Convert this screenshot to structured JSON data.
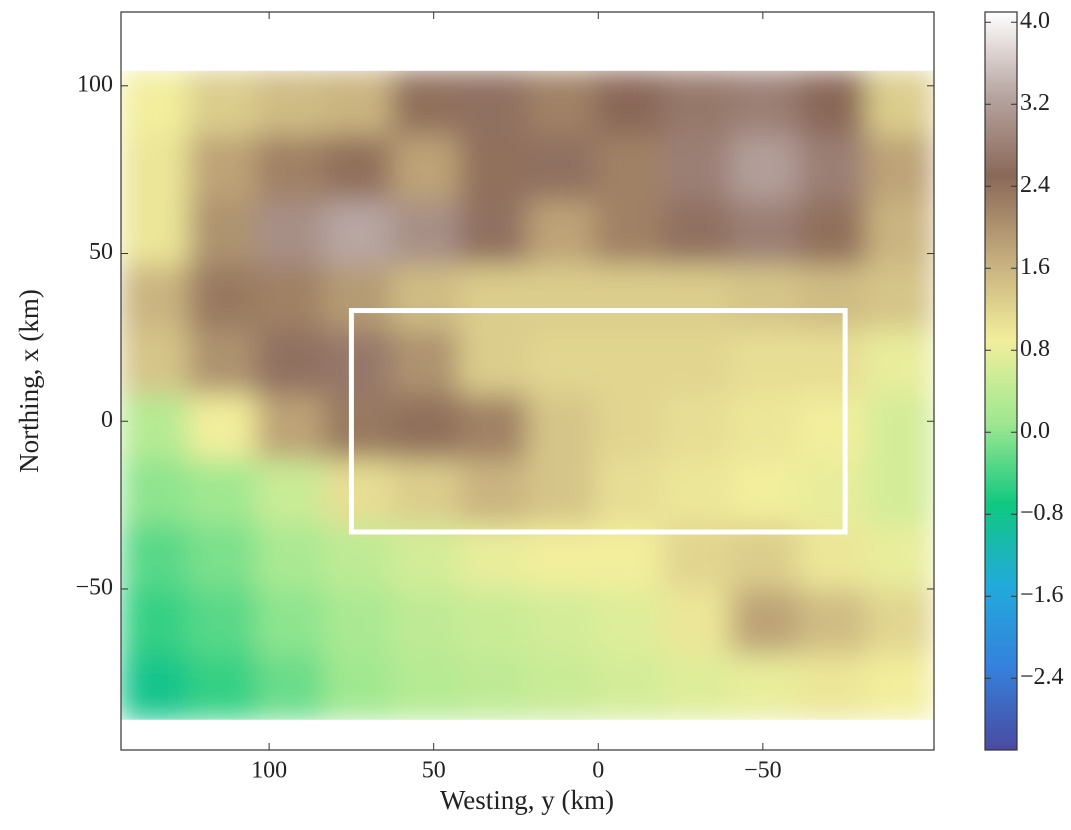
{
  "chart_data": {
    "type": "heatmap",
    "xlabel": "Westing, y (km)",
    "ylabel": "Northing, x (km)",
    "xlim": [
      145,
      -102
    ],
    "ylim": [
      -98,
      122
    ],
    "xticks": [
      100,
      50,
      0,
      {
        "value": -50,
        "label": "−50"
      }
    ],
    "yticks": [
      100,
      50,
      0,
      {
        "value": -50,
        "label": "−50"
      }
    ],
    "extent": [
      145,
      -102,
      -89,
      104.5
    ],
    "z": [
      [
        0.9,
        1.3,
        1.5,
        1.6,
        2.4,
        2.6,
        2.2,
        2.5,
        2.7,
        2.8,
        2.5,
        1.3
      ],
      [
        1.0,
        1.8,
        2.2,
        2.4,
        1.8,
        2.4,
        2.6,
        2.2,
        2.8,
        3.2,
        2.8,
        1.8
      ],
      [
        1.0,
        2.0,
        3.0,
        3.3,
        3.0,
        2.6,
        1.8,
        2.2,
        2.6,
        2.8,
        2.4,
        1.6
      ],
      [
        1.6,
        2.3,
        2.2,
        1.9,
        1.5,
        1.3,
        1.3,
        1.3,
        1.3,
        1.4,
        1.5,
        1.4
      ],
      [
        1.4,
        2.0,
        2.6,
        2.7,
        2.0,
        1.3,
        1.2,
        1.2,
        1.2,
        1.1,
        1.1,
        0.8
      ],
      [
        0.3,
        0.9,
        1.8,
        2.3,
        2.4,
        2.2,
        1.4,
        1.2,
        1.1,
        1.0,
        0.9,
        0.6
      ],
      [
        0.0,
        0.1,
        0.5,
        1.1,
        1.3,
        1.6,
        1.4,
        1.1,
        1.0,
        0.9,
        0.8,
        0.6
      ],
      [
        -0.3,
        -0.1,
        0.2,
        0.4,
        0.6,
        0.8,
        0.9,
        0.9,
        1.2,
        1.3,
        1.0,
        0.8
      ],
      [
        -0.5,
        -0.3,
        0.0,
        0.2,
        0.4,
        0.5,
        0.6,
        0.7,
        1.0,
        1.8,
        1.5,
        1.2
      ],
      [
        -0.8,
        -0.5,
        -0.2,
        0.1,
        0.3,
        0.4,
        0.5,
        0.6,
        0.7,
        0.8,
        1.0,
        0.9
      ]
    ],
    "clim": [
      -3.1,
      4.1
    ],
    "colormap": [
      "#4b4aa0",
      "#3580dc",
      "#22aadc",
      "#10c880",
      "#a0e890",
      "#f2ee9c",
      "#c4ac7c",
      "#8a6858",
      "#b8a6a2",
      "#ffffff"
    ],
    "cticks": [
      4.0,
      3.2,
      2.4,
      1.6,
      0.8,
      0.0,
      {
        "value": -0.8,
        "label": "−0.8"
      },
      {
        "value": -1.6,
        "label": "−1.6"
      },
      {
        "value": -2.4,
        "label": "−2.4"
      }
    ],
    "highlight_box": {
      "y_range": [
        75,
        -75
      ],
      "x_range": [
        -33,
        33
      ],
      "color": "#ffffff"
    }
  }
}
